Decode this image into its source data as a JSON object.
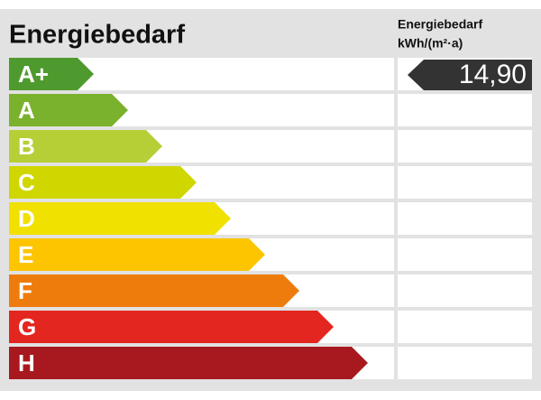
{
  "header": {
    "title": "Energiebedarf",
    "column_title": "Energiebedarf",
    "column_unit": "kWh/(m²·a)"
  },
  "classes": [
    {
      "label": "A+",
      "color": "#4f9a2f"
    },
    {
      "label": "A",
      "color": "#7ab12d"
    },
    {
      "label": "B",
      "color": "#b6cf37"
    },
    {
      "label": "C",
      "color": "#cfd600"
    },
    {
      "label": "D",
      "color": "#f1e100"
    },
    {
      "label": "E",
      "color": "#fcc500"
    },
    {
      "label": "F",
      "color": "#ee7c0c"
    },
    {
      "label": "G",
      "color": "#e3261f"
    },
    {
      "label": "H",
      "color": "#a8191f"
    }
  ],
  "value": "14,90"
}
